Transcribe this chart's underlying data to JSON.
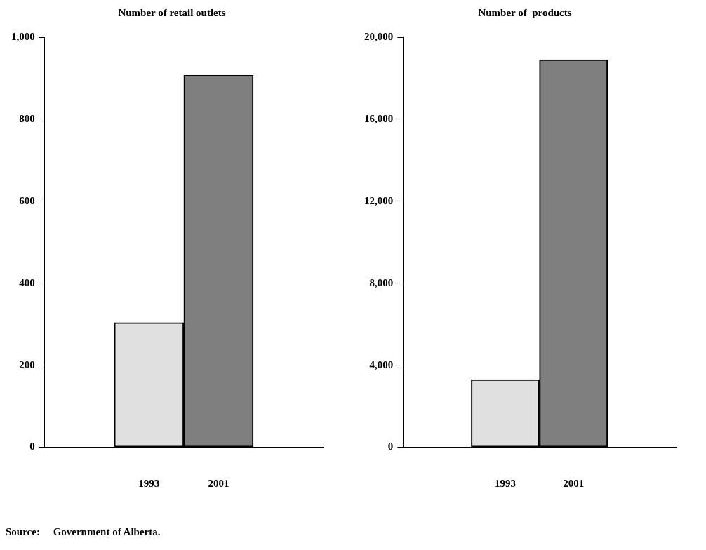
{
  "chart_data": [
    {
      "type": "bar",
      "title": "Number of retail outlets",
      "categories": [
        "1993",
        "2001"
      ],
      "colors": [
        "#e0e0e0",
        "#7f7f7f"
      ],
      "values": [
        304,
        907
      ],
      "ylim": [
        0,
        1000
      ],
      "yticks": [
        0,
        {
          "value": 200,
          "label": "200"
        },
        {
          "value": 400,
          "label": "400"
        },
        {
          "value": 600,
          "label": "600"
        },
        {
          "value": 800,
          "label": "800"
        },
        {
          "value": 1000,
          "label": "1,000"
        }
      ],
      "grid": false,
      "legend": false,
      "annotations": [
        "Source:     Government of Alberta."
      ]
    },
    {
      "type": "bar",
      "title": "Number of  products",
      "categories": [
        "1993",
        "2001"
      ],
      "colors": [
        "#e0e0e0",
        "#7f7f7f"
      ],
      "values": [
        3300,
        18900
      ],
      "ylim": [
        0,
        20000
      ],
      "yticks": [
        0,
        {
          "value": 4000,
          "label": "4,000"
        },
        {
          "value": 8000,
          "label": "8,000"
        },
        {
          "value": 12000,
          "label": "12,000"
        },
        {
          "value": 16000,
          "label": "16,000"
        },
        {
          "value": 20000,
          "label": "20,000"
        }
      ],
      "grid": false,
      "legend": false
    }
  ]
}
